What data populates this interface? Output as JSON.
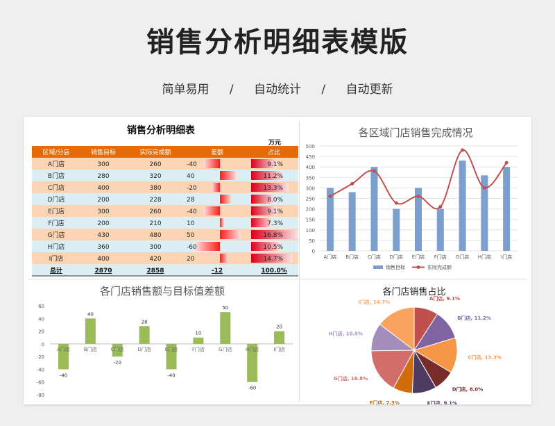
{
  "hero": {
    "title": "销售分析明细表模版",
    "tags": [
      "简单易用",
      "/",
      "自动统计",
      "/",
      "自动更新"
    ]
  },
  "table": {
    "title": "销售分析明细表",
    "unit": "万元",
    "headers": [
      "区域/分店",
      "销售目标",
      "实际完成额",
      "差额",
      "占比"
    ],
    "rows": [
      {
        "store": "A门店",
        "target": "300",
        "actual": "260",
        "diff": "-40",
        "share": "9.1%",
        "diff_value": -40,
        "share_value": 9.1
      },
      {
        "store": "B门店",
        "target": "280",
        "actual": "320",
        "diff": "40",
        "share": "11.2%",
        "diff_value": 40,
        "share_value": 11.2
      },
      {
        "store": "C门店",
        "target": "400",
        "actual": "380",
        "diff": "-20",
        "share": "13.3%",
        "diff_value": -20,
        "share_value": 13.3
      },
      {
        "store": "D门店",
        "target": "200",
        "actual": "228",
        "diff": "28",
        "share": "8.0%",
        "diff_value": 28,
        "share_value": 8.0
      },
      {
        "store": "E门店",
        "target": "300",
        "actual": "260",
        "diff": "-40",
        "share": "9.1%",
        "diff_value": -40,
        "share_value": 9.1
      },
      {
        "store": "F门店",
        "target": "200",
        "actual": "210",
        "diff": "10",
        "share": "7.3%",
        "diff_value": 10,
        "share_value": 7.3
      },
      {
        "store": "G门店",
        "target": "430",
        "actual": "480",
        "diff": "50",
        "share": "16.8%",
        "diff_value": 50,
        "share_value": 16.8
      },
      {
        "store": "H门店",
        "target": "360",
        "actual": "300",
        "diff": "-60",
        "share": "10.5%",
        "diff_value": -60,
        "share_value": 10.5
      },
      {
        "store": "I门店",
        "target": "400",
        "actual": "420",
        "diff": "20",
        "share": "14.7%",
        "diff_value": 20,
        "share_value": 14.7
      }
    ],
    "total": {
      "label": "总计",
      "target": "2870",
      "actual": "2858",
      "diff": "-12",
      "share": "100.0%"
    },
    "colors": {
      "header_bg": "#e36c09",
      "row_orange": "#fbd4b4",
      "row_blue": "#daeef3",
      "databar": "#ff0000"
    }
  },
  "chart_data": [
    {
      "type": "bar",
      "title": "各区域门店销售完成情况",
      "categories": [
        "A门店",
        "B门店",
        "C门店",
        "D门店",
        "E门店",
        "F门店",
        "G门店",
        "H门店",
        "I门店"
      ],
      "series": [
        {
          "name": "销售目标",
          "type": "bar",
          "values": [
            300,
            280,
            400,
            200,
            300,
            200,
            430,
            360,
            400
          ],
          "color": "#7ba0cd"
        },
        {
          "name": "实际完成额",
          "type": "line",
          "values": [
            260,
            320,
            380,
            228,
            260,
            210,
            480,
            300,
            420
          ],
          "color": "#c0504d"
        }
      ],
      "y_ticks": [
        "0",
        "50",
        "100",
        "150",
        "200",
        "250",
        "300",
        "350",
        "400",
        "450",
        "500"
      ],
      "ylim": [
        0,
        500
      ],
      "grid": true,
      "legend": "bottom"
    },
    {
      "type": "bar",
      "title": "各门店销售额与目标值差额",
      "categories": [
        "A门店",
        "B门店",
        "C门店",
        "D门店",
        "E门店",
        "F门店",
        "G门店",
        "H门店",
        "I门店"
      ],
      "values": [
        -40,
        40,
        -20,
        28,
        -40,
        10,
        50,
        -60,
        20
      ],
      "data_labels": [
        "-40",
        "40",
        "-20",
        "28",
        "-40",
        "10",
        "50",
        "-60",
        "20"
      ],
      "y_ticks": [
        "60",
        "40",
        "20",
        "0",
        "-20",
        "-40",
        "-60",
        "-80"
      ],
      "ylim": [
        -80,
        60
      ],
      "color": "#9bbb59"
    },
    {
      "type": "pie",
      "title": "各门店销售占比",
      "labels": [
        "A门店",
        "B门店",
        "C门店",
        "D门店",
        "E门店",
        "F门店",
        "G门店",
        "H门店",
        "I门店"
      ],
      "values": [
        9.1,
        11.2,
        13.3,
        8.0,
        9.1,
        7.3,
        16.8,
        10.5,
        14.7
      ],
      "data_labels": [
        "A门店, 9.1%",
        "B门店, 11.2%",
        "C门店, 13.3%",
        "D门店, 8.0%",
        "E门店, 9.1%",
        "F门店, 7.3%",
        "G门店, 16.8%",
        "H门店, 10.5%",
        "I门店, 14.7%"
      ],
      "colors": [
        "#c0504d",
        "#8064a2",
        "#f79646",
        "#772c2a",
        "#4e3b62",
        "#d26b0b",
        "#d16d6a",
        "#a28dbb",
        "#f9a35e"
      ]
    }
  ]
}
